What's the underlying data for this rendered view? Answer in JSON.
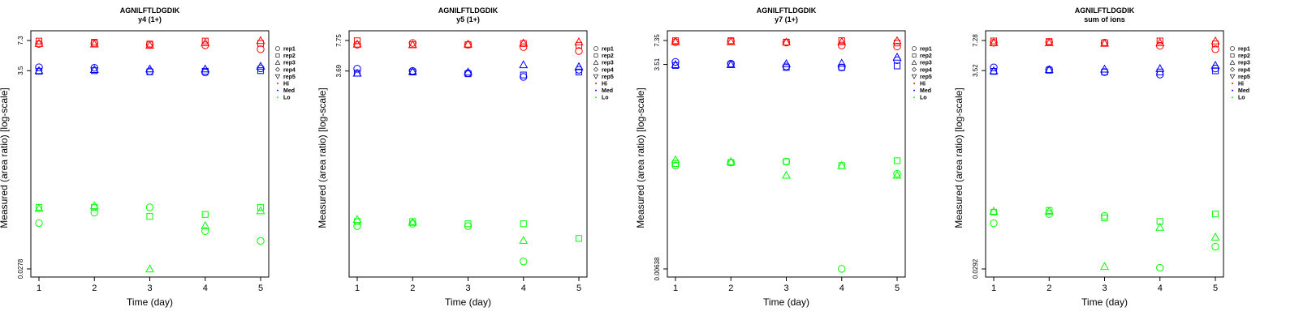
{
  "chart_data": [
    {
      "type": "scatter",
      "title": "AGNILFTLDGDIK",
      "subtitle": "y4 (1+)",
      "xlabel": "Time (day)",
      "ylabel": "Measured (area ratio) [log-scale]",
      "y_scale": "log",
      "x": [
        1,
        2,
        3,
        4,
        5
      ],
      "ylim": [
        0.0278,
        7.3
      ],
      "y_ticks": [
        "7.3",
        "3.5",
        "0.0278"
      ],
      "legend": {
        "placement": "top-right",
        "shapes": [
          "rep1",
          "rep2",
          "rep3",
          "rep4",
          "rep5"
        ],
        "colors": [
          "Hi",
          "Med",
          "Lo"
        ]
      },
      "groups": [
        {
          "name": "Hi",
          "color": "#ff0000",
          "points": [
            {
              "rep": "rep1",
              "values": [
                6.7,
                6.8,
                6.6,
                6.5,
                5.9
              ]
            },
            {
              "rep": "rep2",
              "values": [
                7.2,
                7.0,
                6.7,
                7.2,
                6.8
              ]
            },
            {
              "rep": "rep3",
              "values": [
                6.8,
                6.7,
                6.5,
                6.9,
                7.3
              ]
            }
          ]
        },
        {
          "name": "Med",
          "color": "#0000ff",
          "points": [
            {
              "rep": "rep1",
              "values": [
                3.8,
                3.75,
                3.45,
                3.35,
                3.7
              ]
            },
            {
              "rep": "rep2",
              "values": [
                3.45,
                3.5,
                3.4,
                3.45,
                3.5
              ]
            },
            {
              "rep": "rep3",
              "values": [
                3.5,
                3.6,
                3.65,
                3.65,
                3.9
              ]
            }
          ]
        },
        {
          "name": "Lo",
          "color": "#00ff00",
          "points": [
            {
              "rep": "rep1",
              "values": [
                0.085,
                0.11,
                0.125,
                0.07,
                0.055
              ]
            },
            {
              "rep": "rep2",
              "values": [
                0.125,
                0.125,
                0.1,
                0.105,
                0.125
              ]
            },
            {
              "rep": "rep3",
              "values": [
                0.122,
                0.13,
                0.0278,
                0.08,
                0.115
              ]
            }
          ]
        }
      ]
    },
    {
      "type": "scatter",
      "title": "AGNILFTLDGDIK",
      "subtitle": "y5 (1+)",
      "xlabel": "Time (day)",
      "ylabel": "Measured (area ratio) [log-scale]",
      "y_scale": "log",
      "x": [
        1,
        2,
        3,
        4,
        5
      ],
      "ylim": [
        0.03,
        7.75
      ],
      "y_ticks": [
        "7.75",
        "3.69"
      ],
      "legend": {
        "placement": "top-right",
        "shapes": [
          "rep1",
          "rep2",
          "rep3",
          "rep4",
          "rep5"
        ],
        "colors": [
          "Hi",
          "Med",
          "Lo"
        ]
      },
      "groups": [
        {
          "name": "Hi",
          "color": "#ff0000",
          "points": [
            {
              "rep": "rep1",
              "values": [
                7.0,
                7.3,
                7.0,
                6.6,
                6.0
              ]
            },
            {
              "rep": "rep2",
              "values": [
                7.7,
                7.0,
                7.0,
                7.2,
                6.9
              ]
            },
            {
              "rep": "rep3",
              "values": [
                7.1,
                7.0,
                7.1,
                7.3,
                7.5
              ]
            }
          ]
        },
        {
          "name": "Med",
          "color": "#0000ff",
          "points": [
            {
              "rep": "rep1",
              "values": [
                3.9,
                3.7,
                3.5,
                3.2,
                3.8
              ]
            },
            {
              "rep": "rep2",
              "values": [
                3.5,
                3.6,
                3.45,
                3.35,
                3.6
              ]
            },
            {
              "rep": "rep3",
              "values": [
                3.5,
                3.65,
                3.6,
                4.3,
                4.1
              ]
            }
          ]
        },
        {
          "name": "Lo",
          "color": "#00ff00",
          "points": [
            {
              "rep": "rep1",
              "values": [
                0.085,
                0.09,
                0.085,
                0.036,
                null
              ]
            },
            {
              "rep": "rep2",
              "values": [
                0.095,
                0.095,
                0.09,
                0.09,
                0.063
              ]
            },
            {
              "rep": "rep3",
              "values": [
                0.1,
                0.093,
                null,
                0.06,
                null
              ]
            }
          ]
        }
      ]
    },
    {
      "type": "scatter",
      "title": "AGNILFTLDGDIK",
      "subtitle": "y7 (1+)",
      "xlabel": "Time (day)",
      "ylabel": "Measured (area ratio) [log-scale]",
      "y_scale": "log",
      "x": [
        1,
        2,
        3,
        4,
        5
      ],
      "ylim": [
        0.00638,
        7.35
      ],
      "y_ticks": [
        "7.35",
        "3.51",
        "0.00638"
      ],
      "legend": {
        "placement": "top-right",
        "shapes": [
          "rep1",
          "rep2",
          "rep3",
          "rep4",
          "rep5"
        ],
        "colors": [
          "Hi",
          "Med",
          "Lo"
        ]
      },
      "groups": [
        {
          "name": "Hi",
          "color": "#ff0000",
          "points": [
            {
              "rep": "rep1",
              "values": [
                7.0,
                7.2,
                6.9,
                6.3,
                6.1
              ]
            },
            {
              "rep": "rep2",
              "values": [
                7.3,
                7.3,
                7.0,
                7.3,
                6.8
              ]
            },
            {
              "rep": "rep3",
              "values": [
                7.1,
                7.1,
                7.0,
                7.1,
                7.3
              ]
            }
          ]
        },
        {
          "name": "Med",
          "color": "#0000ff",
          "points": [
            {
              "rep": "rep1",
              "values": [
                3.8,
                3.6,
                3.3,
                3.2,
                4.0
              ]
            },
            {
              "rep": "rep2",
              "values": [
                3.4,
                3.5,
                3.2,
                3.2,
                3.35
              ]
            },
            {
              "rep": "rep3",
              "values": [
                3.5,
                3.5,
                3.6,
                3.65,
                4.4
              ]
            }
          ]
        },
        {
          "name": "Lo",
          "color": "#00ff00",
          "points": [
            {
              "rep": "rep1",
              "values": [
                0.155,
                0.17,
                0.175,
                0.0064,
                0.12
              ]
            },
            {
              "rep": "rep2",
              "values": [
                0.165,
                0.17,
                0.175,
                0.155,
                0.18
              ]
            },
            {
              "rep": "rep3",
              "values": [
                0.185,
                0.175,
                0.115,
                0.155,
                0.115
              ]
            }
          ]
        }
      ]
    },
    {
      "type": "scatter",
      "title": "AGNILFTLDGDIK",
      "subtitle": "sum of ions",
      "xlabel": "Time (day)",
      "ylabel": "Measured (area ratio) [log-scale]",
      "y_scale": "log",
      "x": [
        1,
        2,
        3,
        4,
        5
      ],
      "ylim": [
        0.0292,
        7.28
      ],
      "y_ticks": [
        "7.28",
        "3.52",
        "0.0292"
      ],
      "legend": {
        "placement": "top-right",
        "shapes": [
          "rep1",
          "rep2",
          "rep3",
          "rep4",
          "rep5"
        ],
        "colors": [
          "Hi",
          "Med",
          "Lo"
        ]
      },
      "groups": [
        {
          "name": "Hi",
          "color": "#ff0000",
          "points": [
            {
              "rep": "rep1",
              "values": [
                6.9,
                7.0,
                6.9,
                6.4,
                5.9
              ]
            },
            {
              "rep": "rep2",
              "values": [
                7.2,
                7.1,
                6.9,
                7.2,
                6.7
              ]
            },
            {
              "rep": "rep3",
              "values": [
                6.9,
                6.9,
                6.8,
                6.9,
                7.2
              ]
            }
          ]
        },
        {
          "name": "Med",
          "color": "#0000ff",
          "points": [
            {
              "rep": "rep1",
              "values": [
                3.8,
                3.6,
                3.4,
                3.2,
                3.7
              ]
            },
            {
              "rep": "rep2",
              "values": [
                3.45,
                3.55,
                3.4,
                3.4,
                3.5
              ]
            },
            {
              "rep": "rep3",
              "values": [
                3.5,
                3.6,
                3.65,
                3.7,
                4.0
              ]
            }
          ]
        },
        {
          "name": "Lo",
          "color": "#00ff00",
          "points": [
            {
              "rep": "rep1",
              "values": [
                0.088,
                0.11,
                0.105,
                0.03,
                0.05
              ]
            },
            {
              "rep": "rep2",
              "values": [
                0.115,
                0.12,
                0.1,
                0.092,
                0.11
              ]
            },
            {
              "rep": "rep3",
              "values": [
                0.118,
                0.118,
                0.031,
                0.08,
                0.063
              ]
            }
          ]
        }
      ]
    }
  ]
}
